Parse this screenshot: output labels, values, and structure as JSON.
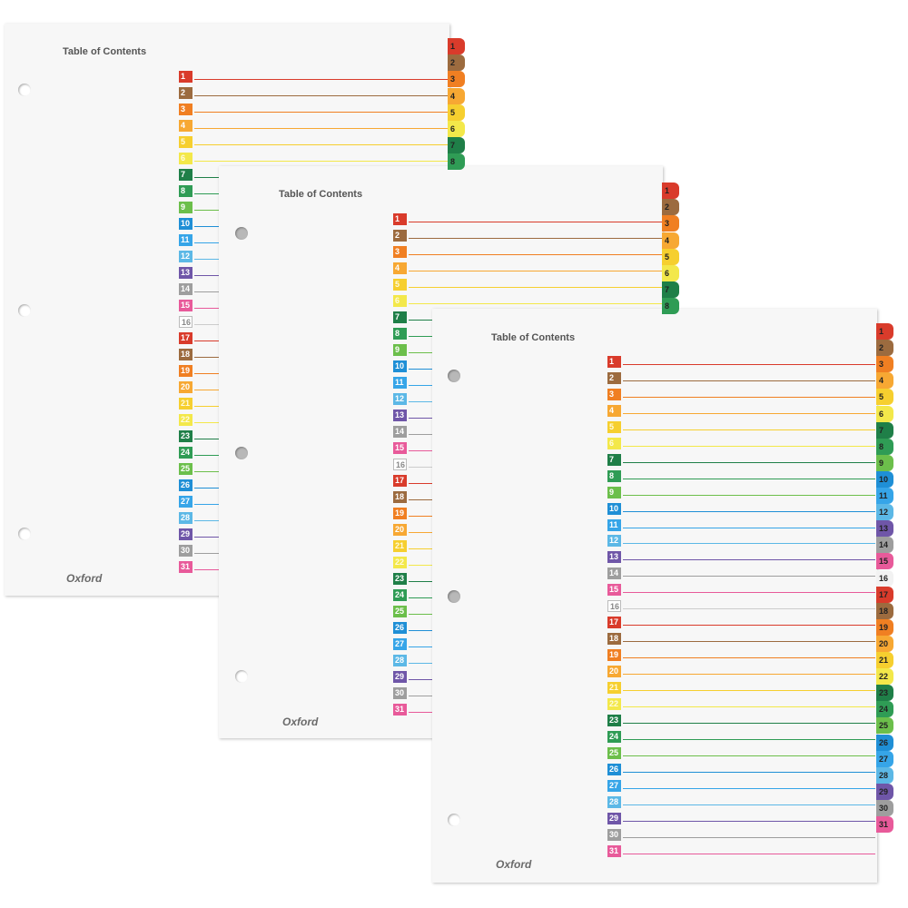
{
  "title": "Table of Contents",
  "brand": "Oxford",
  "entries": [
    "1",
    "2",
    "3",
    "4",
    "5",
    "6",
    "7",
    "8",
    "9",
    "10",
    "11",
    "12",
    "13",
    "14",
    "15",
    "16",
    "17",
    "18",
    "19",
    "20",
    "21",
    "22",
    "23",
    "24",
    "25",
    "26",
    "27",
    "28",
    "29",
    "30",
    "31"
  ],
  "colors": [
    "#d93b2b",
    "#9c6b3f",
    "#f07f22",
    "#f7a833",
    "#f6cf2f",
    "#f3e84a",
    "#1f7f48",
    "#2f9c55",
    "#6cbf4b",
    "#1f8fd6",
    "#36a5e8",
    "#5cb8e6",
    "#6f56a8",
    "#9e9e9e",
    "#e85a9a",
    "#eeeeee",
    "#d93b2b",
    "#9c6b3f",
    "#f07f22",
    "#f7a833",
    "#f6cf2f",
    "#f3e84a",
    "#1f7f48",
    "#2f9c55",
    "#6cbf4b",
    "#1f8fd6",
    "#36a5e8",
    "#5cb8e6",
    "#6f56a8",
    "#9e9e9e",
    "#e85a9a"
  ]
}
